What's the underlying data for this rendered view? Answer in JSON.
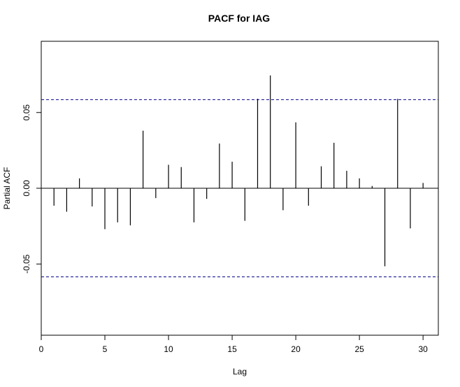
{
  "chart_data": {
    "type": "bar",
    "title": "PACF for IAG",
    "xlabel": "Lag",
    "ylabel": "Partial ACF",
    "xlim": [
      0,
      31.2
    ],
    "ylim": [
      -0.097,
      0.097
    ],
    "x_ticks": [
      0,
      5,
      10,
      15,
      20,
      25,
      30
    ],
    "y_ticks": [
      -0.05,
      0.0,
      0.05
    ],
    "y_tick_labels": [
      "-0.05",
      "0.00",
      "0.05"
    ],
    "confidence_bound": 0.0585,
    "grid": false,
    "legend": "none",
    "lags": [
      1,
      2,
      3,
      4,
      5,
      6,
      7,
      8,
      9,
      10,
      11,
      12,
      13,
      14,
      15,
      16,
      17,
      18,
      19,
      20,
      21,
      22,
      23,
      24,
      25,
      26,
      27,
      28,
      29,
      30
    ],
    "values": [
      -0.0115,
      -0.0155,
      0.0065,
      -0.012,
      -0.027,
      -0.0225,
      -0.0245,
      0.038,
      -0.0065,
      0.0155,
      0.014,
      -0.0225,
      -0.007,
      0.0295,
      0.0175,
      -0.0215,
      0.059,
      0.0745,
      -0.0145,
      0.0435,
      -0.0115,
      0.0145,
      0.03,
      0.0115,
      0.0065,
      0.0015,
      -0.0515,
      0.059,
      -0.0265,
      0.0035
    ],
    "colors": {
      "bars": "#000000",
      "bounds": "#00008B",
      "zero_line": "#000000"
    }
  }
}
